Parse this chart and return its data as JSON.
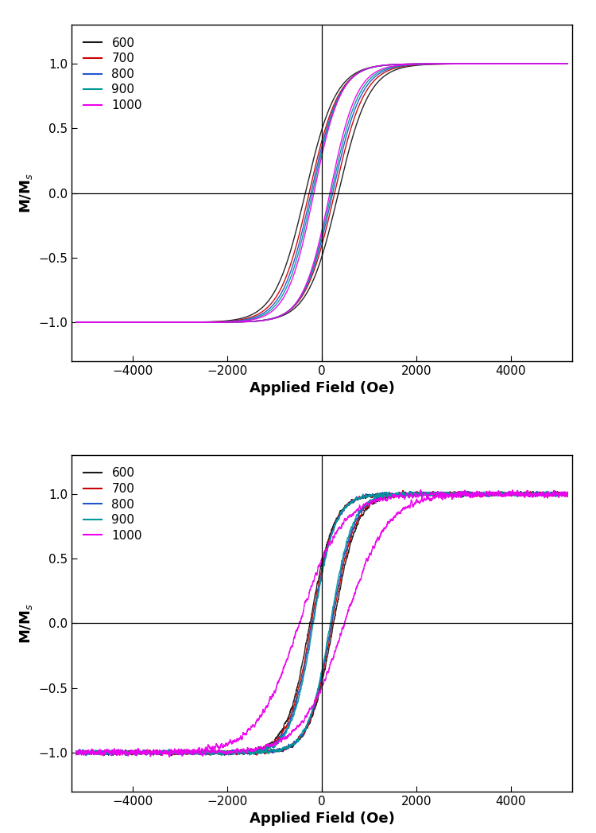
{
  "colors_a": [
    "#1a1a1a",
    "#cc0000",
    "#2255cc",
    "#009999",
    "#ee00ee"
  ],
  "colors_b": [
    "#1a1a1a",
    "#cc0000",
    "#2255cc",
    "#009999",
    "#ee00ee"
  ],
  "labels": [
    "600",
    "700",
    "800",
    "900",
    "1000"
  ],
  "xlabel": "Applied Field (Oe)",
  "ylabel_latex": "M/M$_s$",
  "xlim": [
    -5300,
    5300
  ],
  "ylim": [
    -1.3,
    1.3
  ],
  "xticks": [
    -4000,
    -2000,
    0,
    2000,
    4000
  ],
  "yticks": [
    -1.0,
    -0.5,
    0.0,
    0.5,
    1.0
  ],
  "panel_a": {
    "coercivities": [
      350,
      270,
      230,
      200,
      170
    ],
    "sat_fields": [
      650,
      630,
      610,
      590,
      570
    ]
  },
  "panel_b": {
    "coercivities": [
      250,
      220,
      200,
      180,
      480
    ],
    "sat_fields": [
      500,
      490,
      480,
      470,
      900
    ]
  },
  "background": "#ffffff",
  "line_width": 1.0,
  "noise_a": 0.0,
  "noise_b_small": 0.012,
  "noise_b_large": 0.018
}
